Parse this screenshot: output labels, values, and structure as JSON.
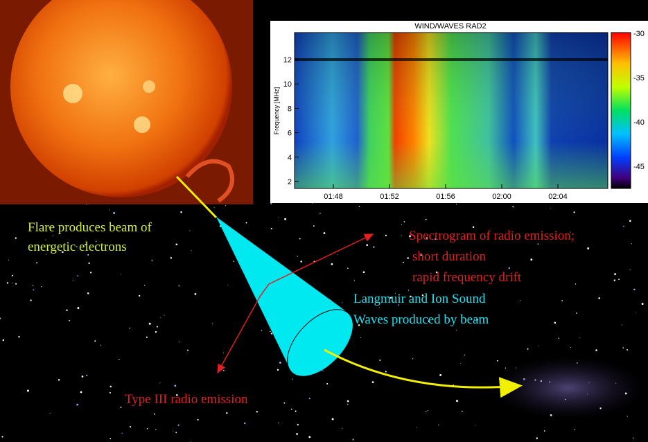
{
  "annotations": {
    "flare": [
      "Flare produces beam of",
      "energetic electrons"
    ],
    "spectrogram": [
      "Spectrogram of radio emission;",
      "short duration",
      "rapid frequency drift"
    ],
    "waves": [
      "Langmuir and Ion Sound",
      "Waves produced by beam"
    ],
    "type3": "Type III radio emission"
  },
  "spectrogram": {
    "title": "WIND/WAVES RAD2",
    "y_label": "Frequency [MHz]",
    "yticks": [
      "2",
      "4",
      "6",
      "8",
      "10",
      "12"
    ],
    "xticks": [
      "01:48",
      "01:52",
      "01:56",
      "02:00",
      "02:04"
    ],
    "colorbar_ticks": [
      "-30",
      "-35",
      "-40",
      "-45"
    ]
  }
}
